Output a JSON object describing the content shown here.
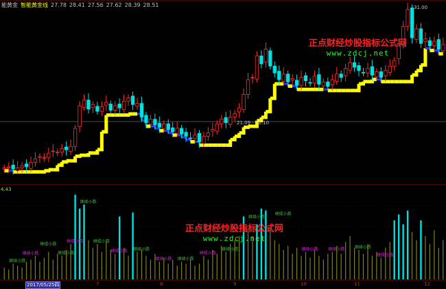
{
  "header": {
    "name": "能黄金",
    "indicator": "智能黄金线",
    "values": [
      "27.78",
      "28.41",
      "27.56",
      "27.62",
      "28.39",
      "28.51"
    ]
  },
  "watermarks": [
    {
      "title": "正点财经炒股指标公式网",
      "url": "www.zdcj.net"
    },
    {
      "title": "正点财经炒股指标公式网",
      "url": "www.zdcj.net"
    }
  ],
  "labels": {
    "high_price": "31.00",
    "line_price": "21.09 - 21.10",
    "volume_scale": "4.43",
    "selected_date": "2017/05/25四"
  },
  "date_ticks": [
    "7",
    "8",
    "9",
    "10",
    "11",
    "12"
  ],
  "colors": {
    "up": "#ff3030",
    "down": "#00e0e0",
    "gold_line_up": "#ffff00",
    "gold_line_down": "#2040ff",
    "volume_normal": "#808020",
    "volume_high": "#00e0e0",
    "signal_green": "#40c040",
    "signal_magenta": "#e020e0"
  },
  "chart_data": {
    "type": "candlestick+volume",
    "price_ylim": [
      15.7,
      31.6
    ],
    "close": [
      17.0,
      17.1,
      16.9,
      17.0,
      17.2,
      17.1,
      17.5,
      17.8,
      18.0,
      17.9,
      18.3,
      18.5,
      18.4,
      18.7,
      18.6,
      18.9,
      20.5,
      22.5,
      23.0,
      22.2,
      22.6,
      22.0,
      22.4,
      22.8,
      22.1,
      22.5,
      22.3,
      22.9,
      23.2,
      22.6,
      22.7,
      21.5,
      21.0,
      21.3,
      20.8,
      20.6,
      20.9,
      20.4,
      20.2,
      20.5,
      20.0,
      19.8,
      19.6,
      19.9,
      19.3,
      19.8,
      20.1,
      20.4,
      20.9,
      21.3,
      21.0,
      21.5,
      21.8,
      22.3,
      23.5,
      24.8,
      25.0,
      26.9,
      26.2,
      27.5,
      26.0,
      25.4,
      24.8,
      25.3,
      24.6,
      24.9,
      24.3,
      25.0,
      24.7,
      24.5,
      25.1,
      24.4,
      24.6,
      24.2,
      24.8,
      25.3,
      25.0,
      25.8,
      26.3,
      25.9,
      25.6,
      25.4,
      25.8,
      25.2,
      25.5,
      25.0,
      25.6,
      26.0,
      26.5,
      28.0,
      29.5,
      31.0,
      28.5,
      29.3,
      28.0,
      28.4,
      27.8,
      28.2,
      27.5,
      27.9
    ],
    "volume": [
      0.6,
      0.5,
      0.8,
      0.7,
      0.6,
      0.9,
      1.0,
      1.2,
      0.9,
      1.1,
      1.4,
      1.0,
      1.3,
      1.2,
      1.5,
      1.8,
      4.3,
      3.6,
      3.8,
      2.0,
      1.6,
      1.8,
      1.4,
      1.9,
      1.5,
      1.3,
      3.2,
      1.6,
      1.2,
      3.4,
      1.4,
      1.5,
      1.2,
      1.0,
      1.3,
      0.9,
      1.1,
      0.8,
      1.0,
      0.7,
      0.9,
      0.8,
      1.0,
      0.7,
      0.8,
      1.2,
      1.0,
      1.5,
      1.3,
      1.7,
      1.4,
      1.8,
      2.0,
      2.2,
      3.2,
      2.5,
      2.2,
      2.8,
      3.6,
      3.5,
      2.6,
      2.0,
      1.8,
      1.5,
      1.7,
      1.3,
      1.6,
      1.2,
      1.4,
      1.1,
      1.5,
      1.2,
      1.0,
      1.3,
      1.4,
      1.7,
      1.3,
      1.9,
      2.2,
      1.6,
      1.5,
      1.3,
      1.8,
      1.2,
      1.4,
      1.1,
      1.6,
      1.9,
      3.0,
      3.3,
      2.8,
      3.5,
      2.4,
      2.0,
      3.0,
      2.2,
      1.8,
      2.5,
      1.6,
      2.0
    ],
    "volume_ylim": [
      0,
      4.43
    ],
    "signal_text": "继续小跌",
    "signals": [
      {
        "index": 2,
        "color": "green"
      },
      {
        "index": 5,
        "color": "magenta"
      },
      {
        "index": 9,
        "color": "green"
      },
      {
        "index": 13,
        "color": "green"
      },
      {
        "index": 15,
        "color": "magenta"
      },
      {
        "index": 18,
        "color": "green"
      },
      {
        "index": 21,
        "color": "green"
      },
      {
        "index": 25,
        "color": "magenta"
      },
      {
        "index": 30,
        "color": "green"
      },
      {
        "index": 35,
        "color": "magenta"
      },
      {
        "index": 40,
        "color": "green"
      },
      {
        "index": 45,
        "color": "magenta"
      },
      {
        "index": 50,
        "color": "green"
      },
      {
        "index": 56,
        "color": "green"
      },
      {
        "index": 62,
        "color": "green"
      },
      {
        "index": 68,
        "color": "magenta"
      },
      {
        "index": 74,
        "color": "magenta"
      },
      {
        "index": 80,
        "color": "green"
      },
      {
        "index": 85,
        "color": "magenta"
      }
    ]
  }
}
